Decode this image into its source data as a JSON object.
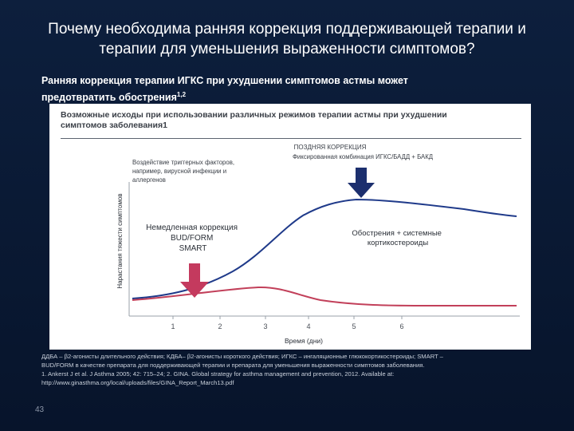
{
  "slide": {
    "title_line1": "Почему необходима ранняя коррекция поддерживающей терапии и",
    "title_line2": "терапии для уменьшения выраженности симптомов?",
    "subtitle_line1": "Ранняя коррекция терапии ИГКС при ухудшении симптомов астмы может",
    "subtitle_line2": "предотвратить обострения",
    "subtitle_sup": "1,2",
    "page_number": "43"
  },
  "panel": {
    "title_line1": "Возможные исходы при использовании различных режимов терапии астмы при ухудшении",
    "title_line2": "симптомов заболевания1"
  },
  "diagram": {
    "y_axis_label": "Нарастания тяжести симптомов",
    "x_axis_label": "Время (дни)",
    "x_ticks": [
      "1",
      "2",
      "3",
      "4",
      "5",
      "6"
    ],
    "trigger_text": [
      "Воздействие триггерных факторов,",
      "например, вирусной инфекции и",
      "аллергенов"
    ],
    "late_title": "ПОЗДНЯЯ КОРРЕКЦИЯ",
    "late_subtitle": "Фиксированная комбинация ИГКС/БАДД + БАКД",
    "immediate_text": [
      "Немедленная коррекция",
      "BUD/FORM",
      "SMART"
    ],
    "exacerbation_text": [
      "Обострения + системные",
      "кортикостероиды"
    ],
    "colors": {
      "late_curve": "#1f3a8a",
      "early_curve": "#c2405a",
      "late_arrow": "#1c2f6e",
      "early_arrow": "#c43a5e"
    }
  },
  "footnotes": [
    "ДДБА – β2-агонисты длительного действия; КДБА– β2-агонисты короткого действия; ИГКС – ингаляционные глюкокортикостероиды; SMART –",
    "BUD/FORM в качестве препарата для  поддерживающей терапии и препарата для уменьшения выраженности симптомов заболевания.",
    "1. Ankerst J et al. J Asthma 2005; 42: 715–24; 2. GINA. Global strategy for asthma management and prevention, 2012. Available at:",
    "http://www.ginasthma.org/local/uploads/files/GINA_Report_March13.pdf"
  ]
}
